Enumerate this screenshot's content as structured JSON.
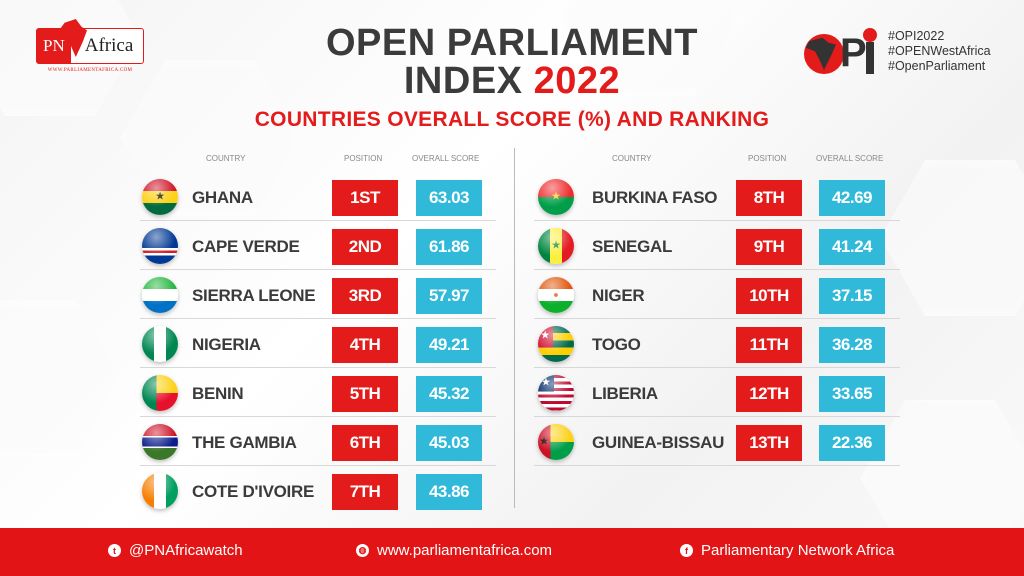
{
  "header": {
    "title_line1": "OPEN PARLIAMENT",
    "title_line2_prefix": "INDEX",
    "title_year": "2022",
    "subtitle": "COUNTRIES OVERALL SCORE (%) AND RANKING"
  },
  "logos": {
    "pn_africa": {
      "left": "PN",
      "right": "Africa",
      "url": "WWW.PARLIAMENTAFRICA.COM"
    },
    "opi": {
      "letters": "P",
      "hashtags": [
        "#OPI2022",
        "#OPENWestAfrica",
        "#OpenParliament"
      ]
    }
  },
  "table_headers": {
    "country": "COUNTRY",
    "position": "POSITION",
    "score": "OVERALL SCORE"
  },
  "left_table": [
    {
      "country": "GHANA",
      "position": "1ST",
      "score": "63.03",
      "flag": "ghana"
    },
    {
      "country": "CAPE VERDE",
      "position": "2ND",
      "score": "61.86",
      "flag": "cape-verde"
    },
    {
      "country": "SIERRA LEONE",
      "position": "3RD",
      "score": "57.97",
      "flag": "sierra-leone"
    },
    {
      "country": "NIGERIA",
      "position": "4TH",
      "score": "49.21",
      "flag": "nigeria"
    },
    {
      "country": "BENIN",
      "position": "5TH",
      "score": "45.32",
      "flag": "benin"
    },
    {
      "country": "THE GAMBIA",
      "position": "6TH",
      "score": "45.03",
      "flag": "gambia"
    },
    {
      "country": "COTE D'IVOIRE",
      "position": "7TH",
      "score": "43.86",
      "flag": "cote-divoire"
    }
  ],
  "right_table": [
    {
      "country": "BURKINA FASO",
      "position": "8TH",
      "score": "42.69",
      "flag": "burkina-faso"
    },
    {
      "country": "SENEGAL",
      "position": "9TH",
      "score": "41.24",
      "flag": "senegal"
    },
    {
      "country": "NIGER",
      "position": "10TH",
      "score": "37.15",
      "flag": "niger"
    },
    {
      "country": "TOGO",
      "position": "11TH",
      "score": "36.28",
      "flag": "togo"
    },
    {
      "country": "LIBERIA",
      "position": "12TH",
      "score": "33.65",
      "flag": "liberia"
    },
    {
      "country": "GUINEA-BISSAU",
      "position": "13TH",
      "score": "22.36",
      "flag": "guinea-bissau"
    }
  ],
  "footer": {
    "twitter": "@PNAfricawatch",
    "website": "www.parliamentafrica.com",
    "facebook": "Parliamentary Network Africa"
  },
  "colors": {
    "red": "#e31b1b",
    "blue": "#30b9d9",
    "dark": "#3b3b3b"
  },
  "chart_data": {
    "type": "table",
    "title": "OPEN PARLIAMENT INDEX 2022 — COUNTRIES OVERALL SCORE (%) AND RANKING",
    "columns": [
      "COUNTRY",
      "POSITION",
      "OVERALL SCORE"
    ],
    "categories": [
      "Ghana",
      "Cape Verde",
      "Sierra Leone",
      "Nigeria",
      "Benin",
      "The Gambia",
      "Cote D'Ivoire",
      "Burkina Faso",
      "Senegal",
      "Niger",
      "Togo",
      "Liberia",
      "Guinea-Bissau"
    ],
    "positions": [
      "1ST",
      "2ND",
      "3RD",
      "4TH",
      "5TH",
      "6TH",
      "7TH",
      "8TH",
      "9TH",
      "10TH",
      "11TH",
      "12TH",
      "13TH"
    ],
    "values": [
      63.03,
      61.86,
      57.97,
      49.21,
      45.32,
      45.03,
      43.86,
      42.69,
      41.24,
      37.15,
      36.28,
      33.65,
      22.36
    ],
    "ylabel": "Overall Score (%)"
  }
}
